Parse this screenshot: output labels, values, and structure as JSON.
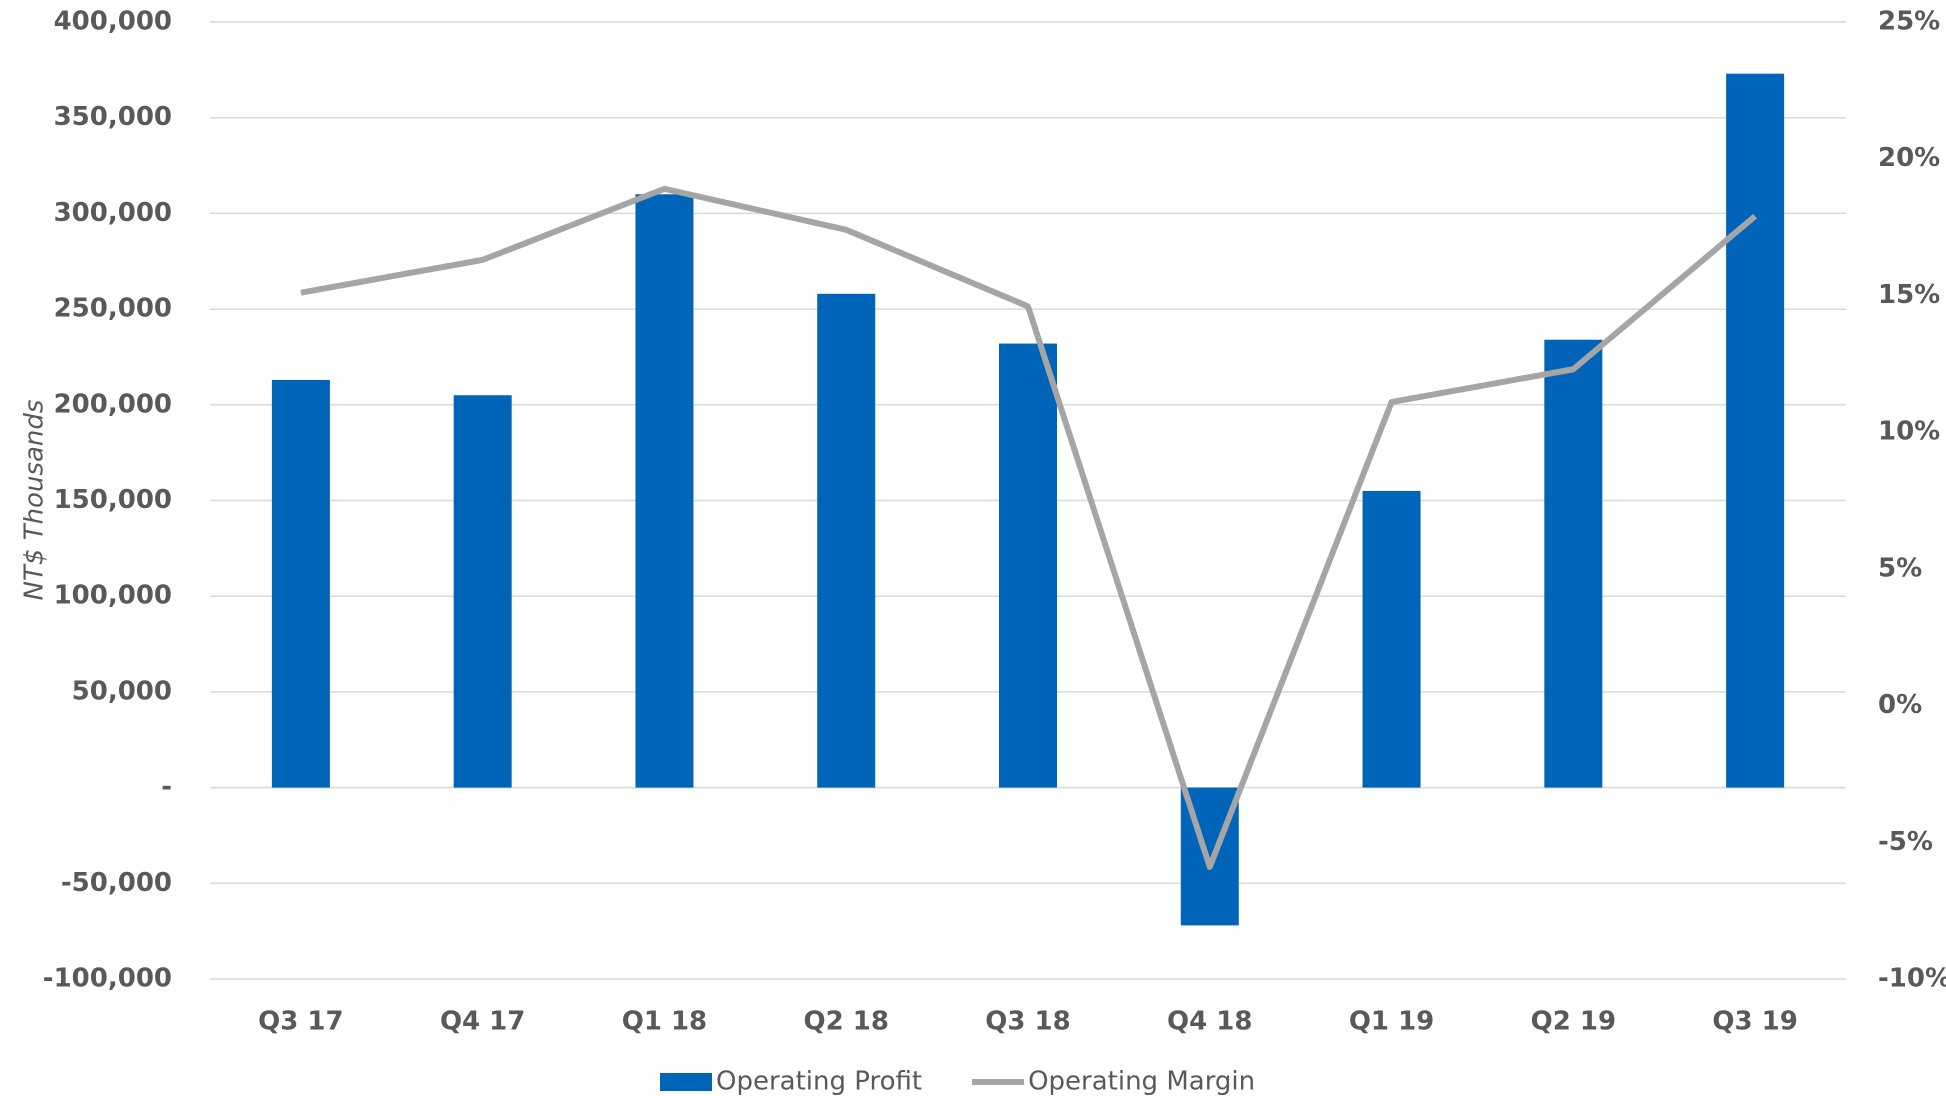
{
  "chart_data": {
    "type": "bar_line",
    "y_label": "NT$ Thousands",
    "categories": [
      "Q3 17",
      "Q4 17",
      "Q1 18",
      "Q2 18",
      "Q3 18",
      "Q4 18",
      "Q1 19",
      "Q2 19",
      "Q3 19"
    ],
    "series": [
      {
        "name": "Operating Profit",
        "type": "bar",
        "color": "#0064b8",
        "values": [
          213000,
          205000,
          310000,
          258000,
          232000,
          -72000,
          155000,
          234000,
          373000
        ]
      },
      {
        "name": "Operating Margin",
        "type": "line",
        "axis": "y2",
        "color": "#a5a5a5",
        "values": [
          15.1,
          16.3,
          18.9,
          17.4,
          14.6,
          -5.9,
          11.1,
          12.3,
          17.9
        ]
      }
    ],
    "ylim": [
      -100000,
      400000
    ],
    "yticks": [
      {
        "value": -100000,
        "label": "-100,000"
      },
      {
        "value": -50000,
        "label": "-50,000"
      },
      {
        "value": 0,
        "label": "-"
      },
      {
        "value": 50000,
        "label": "50,000"
      },
      {
        "value": 100000,
        "label": "100,000"
      },
      {
        "value": 150000,
        "label": "150,000"
      },
      {
        "value": 200000,
        "label": "200,000"
      },
      {
        "value": 250000,
        "label": "250,000"
      },
      {
        "value": 300000,
        "label": "300,000"
      },
      {
        "value": 350000,
        "label": "350,000"
      },
      {
        "value": 400000,
        "label": "400,000"
      }
    ],
    "y2lim": [
      -10,
      25
    ],
    "y2ticks": [
      {
        "value": -10,
        "label": "-10%"
      },
      {
        "value": -5,
        "label": "-5%"
      },
      {
        "value": 0,
        "label": "0%"
      },
      {
        "value": 5,
        "label": "5%"
      },
      {
        "value": 10,
        "label": "10%"
      },
      {
        "value": 15,
        "label": "15%"
      },
      {
        "value": 20,
        "label": "20%"
      },
      {
        "value": 25,
        "label": "25%"
      }
    ],
    "grid": true,
    "legend": "bottom"
  }
}
